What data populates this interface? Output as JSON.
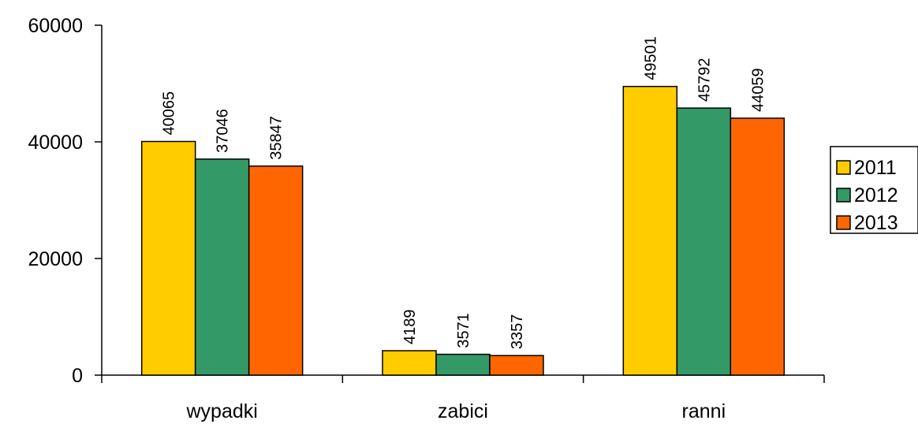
{
  "chart_data": {
    "type": "bar",
    "categories": [
      "wypadki",
      "zabici",
      "ranni"
    ],
    "series": [
      {
        "name": "2011",
        "values": [
          40065,
          4189,
          49501
        ],
        "color": "#FFCC00"
      },
      {
        "name": "2012",
        "values": [
          37046,
          3571,
          45792
        ],
        "color": "#339966"
      },
      {
        "name": "2013",
        "values": [
          35847,
          3357,
          44059
        ],
        "color": "#FF6600"
      }
    ],
    "ylim": [
      0,
      60000
    ],
    "yticks": [
      "0",
      "20000",
      "40000",
      "60000"
    ],
    "ytick_values": [
      0,
      20000,
      40000,
      60000
    ],
    "data_labels": [
      [
        "40065",
        "4189",
        "49501"
      ],
      [
        "37046",
        "3571",
        "45792"
      ],
      [
        "35847",
        "3357",
        "44059"
      ]
    ],
    "grid": false,
    "legend_position": "right",
    "title": "",
    "xlabel": "",
    "ylabel": ""
  }
}
